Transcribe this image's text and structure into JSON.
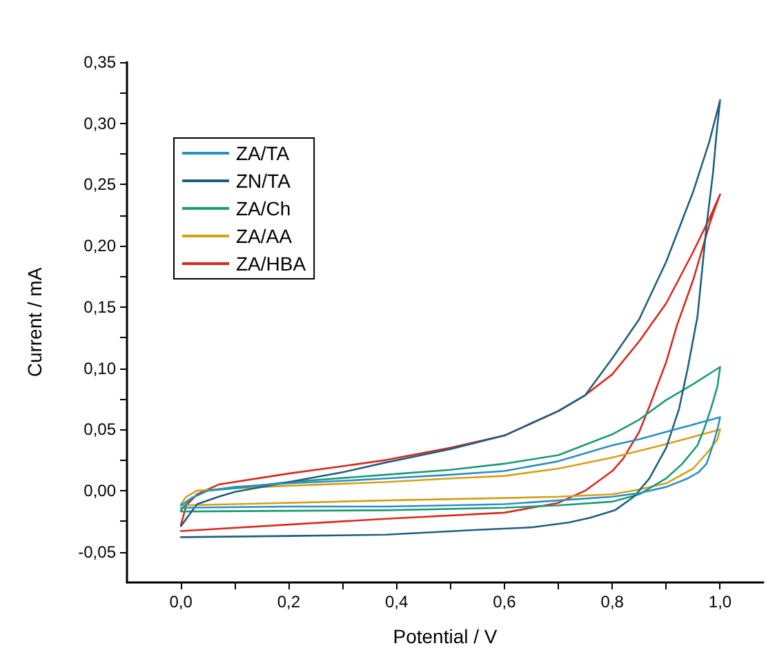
{
  "chart_data": {
    "type": "line",
    "xlabel": "Potential / V",
    "ylabel": "Current / mA",
    "xlim": [
      -0.1,
      1.08
    ],
    "ylim": [
      -0.075,
      0.35
    ],
    "xticks": [
      {
        "value": 0,
        "label": "0,0"
      },
      {
        "value": 0.1,
        "label": null
      },
      {
        "value": 0.2,
        "label": "0,2"
      },
      {
        "value": 0.3,
        "label": null
      },
      {
        "value": 0.4,
        "label": "0,4"
      },
      {
        "value": 0.5,
        "label": null
      },
      {
        "value": 0.6,
        "label": "0,6"
      },
      {
        "value": 0.7,
        "label": null
      },
      {
        "value": 0.8,
        "label": "0,8"
      },
      {
        "value": 0.9,
        "label": null
      },
      {
        "value": 1,
        "label": "1,0"
      }
    ],
    "yticks": [
      {
        "value": -0.05,
        "label": "-0,05"
      },
      {
        "value": -0.025,
        "label": null
      },
      {
        "value": 0,
        "label": "0,00"
      },
      {
        "value": 0.025,
        "label": null
      },
      {
        "value": 0.05,
        "label": "0,05"
      },
      {
        "value": 0.075,
        "label": null
      },
      {
        "value": 0.1,
        "label": "0,10"
      },
      {
        "value": 0.125,
        "label": null
      },
      {
        "value": 0.15,
        "label": "0,15"
      },
      {
        "value": 0.175,
        "label": null
      },
      {
        "value": 0.2,
        "label": "0,20"
      },
      {
        "value": 0.225,
        "label": null
      },
      {
        "value": 0.25,
        "label": "0,25"
      },
      {
        "value": 0.275,
        "label": null
      },
      {
        "value": 0.3,
        "label": "0,30"
      },
      {
        "value": 0.325,
        "label": null
      },
      {
        "value": 0.35,
        "label": "0,35"
      }
    ],
    "legend": "top left",
    "marker": "none",
    "line_style": "solid",
    "series": [
      {
        "name": "ZA/TA",
        "color": "#2a8fc4",
        "x": [
          0,
          0.02,
          0.05,
          0.1,
          0.2,
          0.3,
          0.38,
          0.5,
          0.6,
          0.7,
          0.8,
          0.85,
          0.9,
          0.95,
          1,
          1,
          0.995,
          0.985,
          0.975,
          0.96,
          0.94,
          0.9,
          0.85,
          0.8,
          0.7,
          0.6,
          0.5,
          0.38,
          0.2,
          0
        ],
        "values": [
          -0.012,
          -0.006,
          0,
          0.003,
          0.006,
          0.008,
          0.01,
          0.013,
          0.016,
          0.024,
          0.037,
          0.042,
          0.048,
          0.054,
          0.06,
          0.06,
          0.05,
          0.035,
          0.022,
          0.015,
          0.01,
          0.003,
          -0.002,
          -0.005,
          -0.008,
          -0.011,
          -0.012,
          -0.013,
          -0.013,
          -0.014
        ]
      },
      {
        "name": "ZN/TA",
        "color": "#1f5f7e",
        "x": [
          0,
          0.03,
          0.07,
          0.1,
          0.2,
          0.3,
          0.38,
          0.5,
          0.6,
          0.7,
          0.75,
          0.8,
          0.85,
          0.9,
          0.95,
          0.98,
          1,
          0.993,
          0.987,
          0.975,
          0.958,
          0.94,
          0.924,
          0.9,
          0.869,
          0.84,
          0.805,
          0.76,
          0.72,
          0.65,
          0.55,
          0.38,
          0.2,
          0
        ],
        "values": [
          -0.029,
          -0.011,
          -0.005,
          -0.001,
          0.007,
          0.015,
          0.023,
          0.034,
          0.045,
          0.065,
          0.078,
          0.108,
          0.14,
          0.187,
          0.244,
          0.285,
          0.319,
          0.29,
          0.26,
          0.217,
          0.142,
          0.1,
          0.067,
          0.035,
          0.01,
          -0.005,
          -0.016,
          -0.022,
          -0.026,
          -0.03,
          -0.032,
          -0.036,
          -0.037,
          -0.038
        ]
      },
      {
        "name": "ZA/Ch",
        "color": "#1a9a78",
        "x": [
          0,
          0.02,
          0.05,
          0.1,
          0.2,
          0.38,
          0.5,
          0.6,
          0.7,
          0.8,
          0.85,
          0.9,
          0.95,
          1,
          1,
          0.995,
          0.983,
          0.97,
          0.958,
          0.93,
          0.9,
          0.85,
          0.8,
          0.7,
          0.6,
          0.38,
          0
        ],
        "values": [
          -0.016,
          -0.006,
          0,
          0.002,
          0.007,
          0.013,
          0.017,
          0.022,
          0.029,
          0.046,
          0.058,
          0.074,
          0.087,
          0.101,
          0.101,
          0.085,
          0.067,
          0.05,
          0.037,
          0.022,
          0.01,
          -0.003,
          -0.009,
          -0.012,
          -0.014,
          -0.016,
          -0.017
        ]
      },
      {
        "name": "ZA/AA",
        "color": "#d4a017",
        "x": [
          0,
          0.01,
          0.03,
          0.1,
          0.2,
          0.38,
          0.5,
          0.6,
          0.7,
          0.8,
          0.9,
          0.95,
          1,
          1,
          0.995,
          0.98,
          0.95,
          0.9,
          0.85,
          0.8,
          0.7,
          0.6,
          0.38,
          0.1,
          0
        ],
        "values": [
          -0.011,
          -0.005,
          0,
          0.002,
          0.004,
          0.007,
          0.01,
          0.012,
          0.018,
          0.027,
          0.038,
          0.044,
          0.05,
          0.05,
          0.042,
          0.033,
          0.018,
          0.006,
          0.001,
          -0.003,
          -0.005,
          -0.006,
          -0.008,
          -0.011,
          -0.012
        ]
      },
      {
        "name": "ZA/HBA",
        "color": "#d62a1e",
        "x": [
          0,
          0.01,
          0.03,
          0.07,
          0.2,
          0.3,
          0.38,
          0.5,
          0.6,
          0.7,
          0.75,
          0.8,
          0.85,
          0.9,
          0.95,
          0.98,
          1,
          1,
          0.99,
          0.98,
          0.95,
          0.92,
          0.9,
          0.87,
          0.85,
          0.82,
          0.8,
          0.75,
          0.7,
          0.6,
          0.38,
          0
        ],
        "values": [
          -0.028,
          -0.012,
          -0.003,
          0.005,
          0.014,
          0.02,
          0.025,
          0.035,
          0.045,
          0.065,
          0.078,
          0.095,
          0.122,
          0.153,
          0.195,
          0.222,
          0.242,
          0.242,
          0.23,
          0.217,
          0.172,
          0.135,
          0.105,
          0.07,
          0.048,
          0.026,
          0.016,
          0,
          -0.01,
          -0.018,
          -0.023,
          -0.033
        ]
      }
    ]
  }
}
